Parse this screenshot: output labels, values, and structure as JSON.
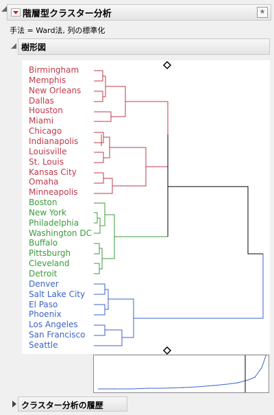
{
  "report": {
    "title": "階層型クラスター分析",
    "method_line": "手法 = Ward法, 列の標準化",
    "dendrogram_title": "樹形図",
    "history_title": "クラスター分析の履歴"
  },
  "colors": {
    "cluster1": "#c0394a",
    "cluster2": "#3a9a3a",
    "cluster3": "#3a62c8",
    "link": "#000000"
  },
  "clusters": [
    {
      "color_key": "cluster1",
      "cities": [
        "Birmingham",
        "Memphis",
        "New Orleans",
        "Dallas",
        "Houston",
        "Miami",
        "Chicago",
        "Indianapolis",
        "Louisville",
        "St. Louis",
        "Kansas City",
        "Omaha",
        "Minneapolis"
      ]
    },
    {
      "color_key": "cluster2",
      "cities": [
        "Boston",
        "New York",
        "Philadelphia",
        "Washington DC",
        "Buffalo",
        "Pittsburgh",
        "Cleveland",
        "Detroit"
      ]
    },
    {
      "color_key": "cluster3",
      "cities": [
        "Denver",
        "Salt Lake City",
        "El Paso",
        "Phoenix",
        "Los Angeles",
        "San Francisco",
        "Seattle"
      ]
    }
  ]
}
